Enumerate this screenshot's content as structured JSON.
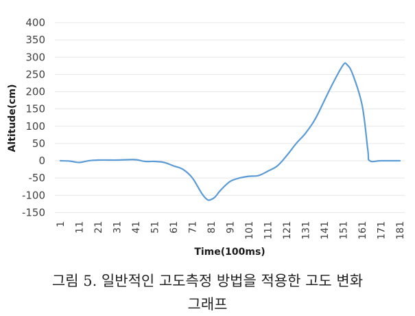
{
  "chart_data": {
    "type": "line",
    "title": "",
    "xlabel": "Time(100ms)",
    "ylabel": "Altitude(cm)",
    "ylim": [
      -150,
      400
    ],
    "yticks": [
      400,
      350,
      300,
      250,
      200,
      150,
      100,
      50,
      0,
      -50,
      -100,
      -150
    ],
    "xlim": [
      1,
      181
    ],
    "xticks": [
      1,
      11,
      21,
      31,
      41,
      51,
      61,
      71,
      81,
      91,
      101,
      111,
      121,
      131,
      141,
      151,
      161,
      171,
      181
    ],
    "grid": true,
    "legend": null,
    "series": [
      {
        "name": "Altitude",
        "color": "#5b9bd5",
        "x": [
          1,
          6,
          11,
          16,
          21,
          26,
          31,
          36,
          41,
          46,
          51,
          56,
          61,
          66,
          71,
          76,
          79,
          81,
          83,
          86,
          91,
          96,
          101,
          106,
          111,
          116,
          121,
          126,
          131,
          136,
          141,
          146,
          151,
          153,
          156,
          161,
          164,
          165,
          171,
          181
        ],
        "values": [
          0,
          -1,
          -5,
          0,
          2,
          2,
          2,
          3,
          3,
          -2,
          -2,
          -5,
          -15,
          -25,
          -50,
          -95,
          -113,
          -112,
          -105,
          -85,
          -60,
          -50,
          -45,
          -43,
          -30,
          -15,
          15,
          50,
          80,
          120,
          175,
          230,
          278,
          278,
          250,
          160,
          30,
          0,
          0,
          0
        ]
      }
    ]
  },
  "caption": {
    "line1": "그림 5. 일반적인 고도측정 방법을 적용한 고도 변화",
    "line2": "그래프"
  }
}
